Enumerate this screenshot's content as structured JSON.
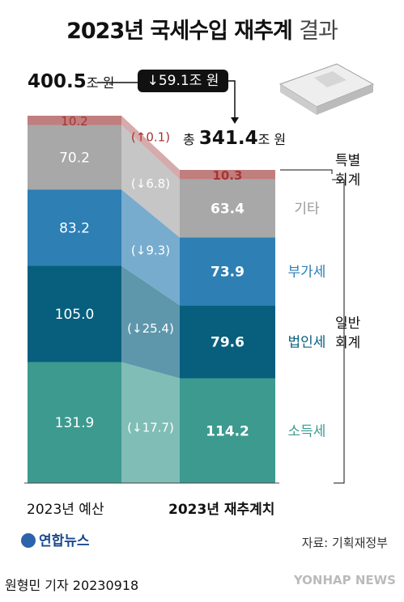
{
  "title": "2023년 국세수입 재추계",
  "title_suffix": "결과",
  "budget_total": {
    "value": "400.5",
    "unit": "조 원"
  },
  "change_box": {
    "arrow": "↓",
    "value": "59.1",
    "unit": "조 원"
  },
  "revised_total": {
    "prefix": "총",
    "value": "341.4",
    "unit": "조 원"
  },
  "legend": {
    "special": "특별\n회계",
    "general": "일반\n회계"
  },
  "x_labels": [
    "2023년 예산",
    "2023년 재추계치"
  ],
  "source": "자료: 기획재정부",
  "logo_text": "연합뉴스",
  "byline": "원형민 기자  20230918",
  "watermark": "YONHAP NEWS",
  "chart_data": {
    "type": "bar",
    "categories": [
      "2023년 예산",
      "2023년 재추계치"
    ],
    "series": [
      {
        "name": "소득세",
        "values": [
          131.9,
          114.2
        ],
        "change": "(↓17.7)",
        "color": "#3c9a8f"
      },
      {
        "name": "법인세",
        "values": [
          105.0,
          79.6
        ],
        "change": "(↓25.4)",
        "color": "#075f7d"
      },
      {
        "name": "부가세",
        "values": [
          83.2,
          73.9
        ],
        "change": "(↓9.3)",
        "color": "#2d7fb4"
      },
      {
        "name": "기타",
        "values": [
          70.2,
          63.4
        ],
        "change": "(↓6.8)",
        "color": "#a8a8a8"
      },
      {
        "name": "특별회계",
        "values": [
          10.2,
          10.3
        ],
        "change": "(↑0.1)",
        "color": "#c07e7e"
      }
    ],
    "totals": [
      400.5,
      341.4
    ]
  }
}
